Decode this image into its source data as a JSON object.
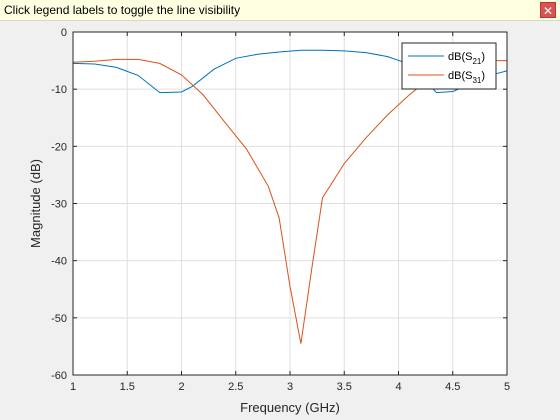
{
  "info_bar": {
    "message": "Click legend labels to toggle the line visibility",
    "close_glyph": "✕"
  },
  "chart_data": {
    "type": "line",
    "xlabel": "Frequency (GHz)",
    "ylabel": "Magnitude (dB)",
    "xlim": [
      1,
      5
    ],
    "ylim": [
      -60,
      0
    ],
    "xticks": [
      1,
      1.5,
      2,
      2.5,
      3,
      3.5,
      4,
      4.5,
      5
    ],
    "xtick_labels": [
      "1",
      "1.5",
      "2",
      "2.5",
      "3",
      "3.5",
      "4",
      "4.5",
      "5"
    ],
    "yticks": [
      0,
      -10,
      -20,
      -30,
      -40,
      -50,
      -60
    ],
    "ytick_labels": [
      "0",
      "-10",
      "-20",
      "-30",
      "-40",
      "-50",
      "-60"
    ],
    "grid": true,
    "legend_placement": "top-right",
    "series": [
      {
        "name": "dB(S21)",
        "label_main": "dB(S",
        "label_sub": "21",
        "label_end": ")",
        "color": "#0072bd",
        "x": [
          1.0,
          1.2,
          1.4,
          1.6,
          1.8,
          2.0,
          2.1,
          2.3,
          2.5,
          2.7,
          2.9,
          3.1,
          3.3,
          3.5,
          3.7,
          3.9,
          4.1,
          4.35,
          4.5,
          4.7,
          4.9,
          5.0
        ],
        "y": [
          -5.5,
          -5.6,
          -6.2,
          -7.6,
          -10.6,
          -10.5,
          -9.5,
          -6.5,
          -4.6,
          -3.9,
          -3.5,
          -3.2,
          -3.2,
          -3.3,
          -3.6,
          -4.3,
          -5.6,
          -10.6,
          -10.4,
          -8.8,
          -7.3,
          -6.8
        ]
      },
      {
        "name": "dB(S31)",
        "label_main": "dB(S",
        "label_sub": "31",
        "label_end": ")",
        "color": "#d95319",
        "x": [
          1.0,
          1.2,
          1.4,
          1.6,
          1.8,
          2.0,
          2.2,
          2.4,
          2.6,
          2.8,
          2.9,
          3.0,
          3.1,
          3.2,
          3.3,
          3.5,
          3.7,
          3.9,
          4.1,
          4.3,
          4.5,
          4.7,
          4.9,
          5.0
        ],
        "y": [
          -5.3,
          -5.1,
          -4.8,
          -4.8,
          -5.5,
          -7.5,
          -11.0,
          -15.8,
          -20.5,
          -27.0,
          -32.5,
          -44.5,
          -54.5,
          -41.5,
          -29.0,
          -23.0,
          -18.5,
          -14.5,
          -11.0,
          -8.0,
          -6.2,
          -5.3,
          -5.0,
          -5.0
        ]
      }
    ]
  }
}
